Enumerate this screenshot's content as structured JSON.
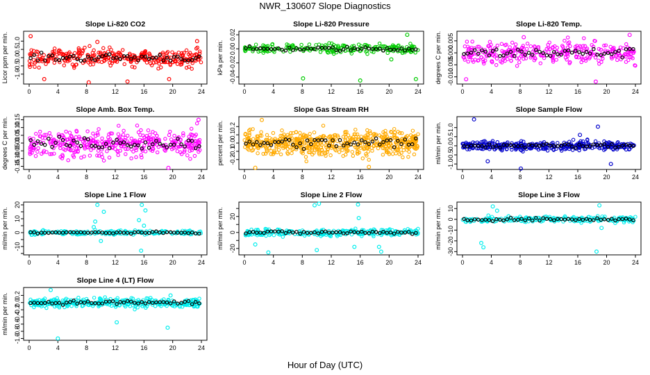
{
  "figure": {
    "title": "NWR_130607  Slope Diagnostics",
    "xlabel": "Hour of Day (UTC)"
  },
  "chart_data": [
    {
      "type": "scatter",
      "title": "Slope Li-820 CO2",
      "ylabel": "Licor ppm per min.",
      "color": "#ff0000",
      "xlim": [
        0,
        24
      ],
      "xticks": [
        0,
        4,
        8,
        12,
        16,
        20,
        24
      ],
      "ylim": [
        -1.6,
        1.6
      ],
      "yticks": [
        -1.0,
        -0.5,
        0.0,
        0.5,
        1.0
      ],
      "ytick_labels": [
        "-1.0",
        "-0.5",
        "0.0",
        "0.5",
        "1.0"
      ],
      "density": 320,
      "spread": 0.55,
      "outliers": [
        {
          "x": 0.2,
          "y": 1.3
        },
        {
          "x": 2.1,
          "y": -1.3
        },
        {
          "x": 8.3,
          "y": -1.5
        },
        {
          "x": 9.5,
          "y": 0.95
        },
        {
          "x": 13.7,
          "y": -1.45
        },
        {
          "x": 19.5,
          "y": -1.3
        },
        {
          "x": 23.4,
          "y": 1.0
        }
      ]
    },
    {
      "type": "scatter",
      "title": "Slope Li-820 Pressure",
      "ylabel": "kPa per min.",
      "color": "#00cc00",
      "xlim": [
        0,
        24
      ],
      "xticks": [
        0,
        4,
        8,
        12,
        16,
        20,
        24
      ],
      "ylim": [
        -0.05,
        0.025
      ],
      "yticks": [
        -0.04,
        -0.02,
        0.0,
        0.02
      ],
      "ytick_labels": [
        "-0.04",
        "-0.02",
        "0.00",
        "0.02"
      ],
      "density": 220,
      "spread": 0.007,
      "outliers": [
        {
          "x": 8.1,
          "y": -0.042
        },
        {
          "x": 16.0,
          "y": -0.045
        },
        {
          "x": 22.5,
          "y": 0.02
        },
        {
          "x": 23.7,
          "y": -0.043
        },
        {
          "x": 20.3,
          "y": -0.015
        }
      ]
    },
    {
      "type": "scatter",
      "title": "Slope Li-820 Temp.",
      "ylabel": "degrees C per min.",
      "color": "#ff00ff",
      "xlim": [
        0,
        24
      ],
      "xticks": [
        0,
        4,
        8,
        12,
        16,
        20,
        24
      ],
      "ylim": [
        -0.013,
        0.009
      ],
      "yticks": [
        -0.01,
        -0.005,
        0.0,
        0.005
      ],
      "ytick_labels": [
        "-0.010",
        "-0.005",
        "0.000",
        "0.005"
      ],
      "density": 300,
      "spread": 0.0045,
      "outliers": [
        {
          "x": 0.5,
          "y": -0.011
        },
        {
          "x": 18.5,
          "y": -0.012
        },
        {
          "x": 23.2,
          "y": 0.0075
        },
        {
          "x": 8.5,
          "y": 0.0065
        }
      ]
    },
    {
      "type": "scatter",
      "title": "Slope Amb. Box Temp.",
      "ylabel": "degrees C per min.",
      "color": "#ff00ff",
      "xlim": [
        0,
        24
      ],
      "xticks": [
        0,
        4,
        8,
        12,
        16,
        20,
        24
      ],
      "ylim": [
        -0.17,
        0.17
      ],
      "yticks": [
        -0.15,
        -0.1,
        -0.05,
        0.0,
        0.05,
        0.1,
        0.15
      ],
      "ytick_labels": [
        "-0.15",
        "-0.10",
        "-0.05",
        "0.00",
        "0.05",
        "0.10",
        "0.15"
      ],
      "density": 380,
      "spread": 0.09,
      "outliers": [
        {
          "x": 19.4,
          "y": -0.16
        },
        {
          "x": 23.6,
          "y": 0.15
        }
      ]
    },
    {
      "type": "scatter",
      "title": "Slope Gas Stream RH",
      "ylabel": "percent per min.",
      "color": "#ffaa00",
      "xlim": [
        0,
        24
      ],
      "xticks": [
        0,
        4,
        8,
        12,
        16,
        20,
        24
      ],
      "ylim": [
        -0.32,
        0.32
      ],
      "yticks": [
        -0.2,
        -0.1,
        0.0,
        0.1,
        0.2
      ],
      "ytick_labels": [
        "-0.2",
        "-0.1",
        "0.0",
        "0.1",
        "0.2"
      ],
      "density": 560,
      "spread": 0.16,
      "outliers": [
        {
          "x": 1.5,
          "y": -0.3
        },
        {
          "x": 2.4,
          "y": 0.28
        },
        {
          "x": 17.2,
          "y": -0.29
        }
      ]
    },
    {
      "type": "scatter",
      "title": "Slope Sample Flow",
      "ylabel": "ml/min per min.",
      "color": "#0000cc",
      "xlim": [
        0,
        24
      ],
      "xticks": [
        0,
        4,
        8,
        12,
        16,
        20,
        24
      ],
      "ylim": [
        -1.3,
        1.6
      ],
      "yticks": [
        -1.0,
        -0.5,
        0.0,
        0.5,
        1.0
      ],
      "ytick_labels": [
        "-1.0",
        "-0.5",
        "0.0",
        "0.5",
        "1.0"
      ],
      "density": 360,
      "spread": 0.25,
      "outliers": [
        {
          "x": 1.6,
          "y": 1.45
        },
        {
          "x": 8.1,
          "y": -1.25
        },
        {
          "x": 18.8,
          "y": 1.05
        },
        {
          "x": 20.6,
          "y": -1.0
        },
        {
          "x": 3.5,
          "y": -0.85
        },
        {
          "x": 16.3,
          "y": 0.6
        }
      ]
    },
    {
      "type": "scatter",
      "title": "Slope Line 1 Flow",
      "ylabel": "ml/min per min.",
      "color": "#00eeee",
      "xlim": [
        0,
        24
      ],
      "xticks": [
        0,
        4,
        8,
        12,
        16,
        20,
        24
      ],
      "ylim": [
        -16,
        22
      ],
      "yticks": [
        -15,
        -10,
        -5,
        0,
        5,
        10,
        15,
        20
      ],
      "ytick_labels": [
        "",
        "-10",
        "",
        "0",
        "",
        "10",
        "",
        "20"
      ],
      "density": 200,
      "spread": 1.5,
      "outliers": [
        {
          "x": 9.5,
          "y": 20
        },
        {
          "x": 10.4,
          "y": 15
        },
        {
          "x": 15.7,
          "y": 20
        },
        {
          "x": 16.2,
          "y": 16
        },
        {
          "x": 9.2,
          "y": 8
        },
        {
          "x": 15.3,
          "y": 9
        },
        {
          "x": 15.6,
          "y": -13
        },
        {
          "x": 10.0,
          "y": -6
        },
        {
          "x": 9.0,
          "y": 4
        },
        {
          "x": 16.0,
          "y": 5
        }
      ]
    },
    {
      "type": "scatter",
      "title": "Slope Line 2 Flow",
      "ylabel": "ml/min per min.",
      "color": "#00eeee",
      "xlim": [
        0,
        24
      ],
      "xticks": [
        0,
        4,
        8,
        12,
        16,
        20,
        24
      ],
      "ylim": [
        -28,
        38
      ],
      "yticks": [
        -20,
        -10,
        0,
        10,
        20,
        30
      ],
      "ytick_labels": [
        "-20",
        "",
        "0",
        "",
        "20",
        ""
      ],
      "density": 260,
      "spread": 4.5,
      "outliers": [
        {
          "x": 9.7,
          "y": 34
        },
        {
          "x": 10.3,
          "y": 36
        },
        {
          "x": 15.7,
          "y": 35
        },
        {
          "x": 18.6,
          "y": -18
        },
        {
          "x": 18.9,
          "y": -24
        },
        {
          "x": 1.5,
          "y": -15
        },
        {
          "x": 3.3,
          "y": -25
        },
        {
          "x": 10.0,
          "y": -22
        },
        {
          "x": 15.2,
          "y": -18
        },
        {
          "x": 15.8,
          "y": 18
        }
      ]
    },
    {
      "type": "scatter",
      "title": "Slope Line 3 Flow",
      "ylabel": "ml/min per min.",
      "color": "#00eeee",
      "xlim": [
        0,
        24
      ],
      "xticks": [
        0,
        4,
        8,
        12,
        16,
        20,
        24
      ],
      "ylim": [
        -33,
        16
      ],
      "yticks": [
        -30,
        -20,
        -10,
        0,
        10
      ],
      "ytick_labels": [
        "-30",
        "-20",
        "-10",
        "0",
        "10"
      ],
      "density": 220,
      "spread": 3.0,
      "outliers": [
        {
          "x": 2.6,
          "y": -22
        },
        {
          "x": 2.9,
          "y": -26
        },
        {
          "x": 4.2,
          "y": 12
        },
        {
          "x": 18.6,
          "y": -30
        },
        {
          "x": 19.0,
          "y": 13
        },
        {
          "x": 19.3,
          "y": -8
        },
        {
          "x": 4.8,
          "y": 8
        }
      ]
    },
    {
      "type": "scatter",
      "title": "Slope Line 4 (LT) Flow",
      "ylabel": "ml/min per min.",
      "color": "#00eeee",
      "xlim": [
        0,
        24
      ],
      "xticks": [
        0,
        4,
        8,
        12,
        16,
        20,
        24
      ],
      "ylim": [
        -1.05,
        0.42
      ],
      "yticks": [
        -1.0,
        -0.8,
        -0.6,
        -0.4,
        -0.2,
        0.0,
        0.2
      ],
      "ytick_labels": [
        "-1.0",
        "-0.8",
        "-0.6",
        "-0.4",
        "-0.2",
        "0.0",
        "0.2"
      ],
      "density": 360,
      "spread": 0.13,
      "outliers": [
        {
          "x": 4.0,
          "y": -1.0
        },
        {
          "x": 12.2,
          "y": -0.55
        },
        {
          "x": 19.3,
          "y": -0.7
        },
        {
          "x": 3.0,
          "y": 0.35
        },
        {
          "x": 19.7,
          "y": 0.2
        }
      ]
    }
  ]
}
